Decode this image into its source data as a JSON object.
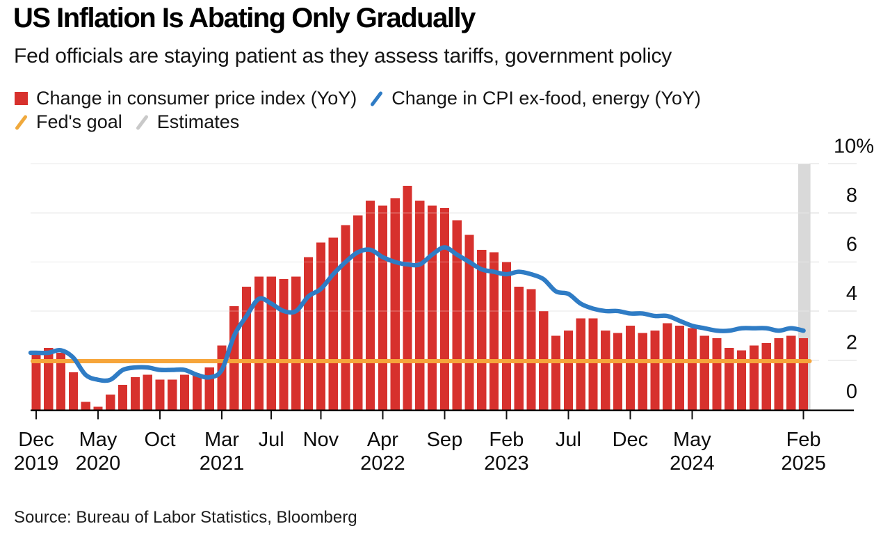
{
  "header": {
    "title": "US Inflation Is Abating Only Gradually",
    "subtitle": "Fed officials are staying patient as they assess tariffs, government policy"
  },
  "legend": [
    {
      "label": "Change in consumer price index (YoY)",
      "swatch": "square",
      "color": "#d7312d"
    },
    {
      "label": "Change in CPI ex-food, energy (YoY)",
      "swatch": "slash",
      "color": "#2f7cc5"
    },
    {
      "label": "Fed's goal",
      "swatch": "slash",
      "color": "#f0a93c"
    },
    {
      "label": "Estimates",
      "swatch": "slash",
      "color": "#c9c9c9"
    }
  ],
  "colors": {
    "bars": "#d7312d",
    "core_line": "#2f7cc5",
    "fed_goal": "#f6a53a",
    "estimates_band": "#d9d9d9",
    "estimates_slash": "#c9c9c9",
    "grid": "#d9d9d9",
    "grid_on_bars": "rgba(255,255,255,0.38)",
    "axis": "#000000"
  },
  "source": "Source: Bureau of Labor Statistics, Bloomberg",
  "chart_data": {
    "type": "bar+line",
    "title": "US Inflation Is Abating Only Gradually",
    "grid": "horizontal",
    "legend_position": "top",
    "categories": [
      "Dec 2019",
      "Jan 2020",
      "Feb 2020",
      "Mar 2020",
      "Apr 2020",
      "May 2020",
      "Jun 2020",
      "Jul 2020",
      "Aug 2020",
      "Sep 2020",
      "Oct 2020",
      "Nov 2020",
      "Dec 2020",
      "Jan 2021",
      "Feb 2021",
      "Mar 2021",
      "Apr 2021",
      "May 2021",
      "Jun 2021",
      "Jul 2021",
      "Aug 2021",
      "Sep 2021",
      "Oct 2021",
      "Nov 2021",
      "Dec 2021",
      "Jan 2022",
      "Feb 2022",
      "Mar 2022",
      "Apr 2022",
      "May 2022",
      "Jun 2022",
      "Jul 2022",
      "Aug 2022",
      "Sep 2022",
      "Oct 2022",
      "Nov 2022",
      "Dec 2022",
      "Jan 2023",
      "Feb 2023",
      "Mar 2023",
      "Apr 2023",
      "May 2023",
      "Jun 2023",
      "Jul 2023",
      "Aug 2023",
      "Sep 2023",
      "Oct 2023",
      "Nov 2023",
      "Dec 2023",
      "Jan 2024",
      "Feb 2024",
      "Mar 2024",
      "Apr 2024",
      "May 2024",
      "Jun 2024",
      "Jul 2024",
      "Aug 2024",
      "Sep 2024",
      "Oct 2024",
      "Nov 2024",
      "Dec 2024",
      "Jan 2025",
      "Feb 2025"
    ],
    "series": [
      {
        "name": "Change in consumer price index (YoY)",
        "type": "bar",
        "color": "#d7312d",
        "values": [
          2.3,
          2.5,
          2.3,
          1.5,
          0.3,
          0.1,
          0.6,
          1.0,
          1.3,
          1.4,
          1.2,
          1.2,
          1.4,
          1.4,
          1.7,
          2.6,
          4.2,
          5.0,
          5.4,
          5.4,
          5.3,
          5.4,
          6.2,
          6.8,
          7.0,
          7.5,
          7.9,
          8.5,
          8.3,
          8.6,
          9.1,
          8.5,
          8.3,
          8.2,
          7.7,
          7.1,
          6.5,
          6.4,
          6.0,
          5.0,
          4.9,
          4.0,
          3.0,
          3.2,
          3.7,
          3.7,
          3.2,
          3.1,
          3.4,
          3.1,
          3.2,
          3.5,
          3.4,
          3.3,
          3.0,
          2.9,
          2.5,
          2.4,
          2.6,
          2.7,
          2.9,
          3.0,
          2.9
        ]
      },
      {
        "name": "Change in CPI ex-food, energy (YoY)",
        "type": "line",
        "color": "#2f7cc5",
        "values": [
          2.3,
          2.3,
          2.4,
          2.1,
          1.4,
          1.2,
          1.2,
          1.6,
          1.7,
          1.7,
          1.6,
          1.6,
          1.6,
          1.4,
          1.3,
          1.6,
          3.0,
          3.8,
          4.5,
          4.3,
          4.0,
          4.0,
          4.6,
          4.9,
          5.5,
          6.0,
          6.4,
          6.5,
          6.2,
          6.0,
          5.9,
          5.9,
          6.3,
          6.6,
          6.3,
          6.0,
          5.7,
          5.6,
          5.5,
          5.6,
          5.5,
          5.3,
          4.8,
          4.7,
          4.3,
          4.1,
          4.0,
          4.0,
          3.9,
          3.9,
          3.8,
          3.8,
          3.6,
          3.4,
          3.3,
          3.2,
          3.2,
          3.3,
          3.3,
          3.3,
          3.2,
          3.3,
          3.2
        ]
      },
      {
        "name": "Fed's goal",
        "type": "hline",
        "color": "#f6a53a",
        "value": 2
      }
    ],
    "estimates": {
      "label": "Estimates",
      "category": "Feb 2025",
      "month_index": 62,
      "color": "#d9d9d9"
    },
    "y_axis": {
      "side": "right",
      "range": [
        0,
        10
      ],
      "ticks": [
        0,
        2,
        4,
        6,
        8,
        10
      ],
      "tick_labels": [
        "0",
        "2",
        "4",
        "6",
        "8",
        "10%"
      ]
    },
    "x_axis": {
      "ticks": [
        {
          "month_index": 0,
          "month": "Dec",
          "year": "2019"
        },
        {
          "month_index": 5,
          "month": "May",
          "year": "2020"
        },
        {
          "month_index": 10,
          "month": "Oct",
          "year": ""
        },
        {
          "month_index": 15,
          "month": "Mar",
          "year": "2021"
        },
        {
          "month_index": 19,
          "month": "Jul",
          "year": ""
        },
        {
          "month_index": 23,
          "month": "Nov",
          "year": ""
        },
        {
          "month_index": 28,
          "month": "Apr",
          "year": "2022"
        },
        {
          "month_index": 33,
          "month": "Sep",
          "year": ""
        },
        {
          "month_index": 38,
          "month": "Feb",
          "year": "2023"
        },
        {
          "month_index": 43,
          "month": "Jul",
          "year": ""
        },
        {
          "month_index": 48,
          "month": "Dec",
          "year": ""
        },
        {
          "month_index": 53,
          "month": "May",
          "year": "2024"
        },
        {
          "month_index": 62,
          "month": "Feb",
          "year": "2025"
        }
      ]
    }
  }
}
